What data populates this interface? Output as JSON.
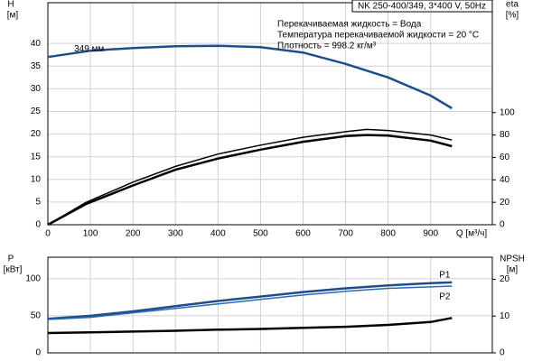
{
  "chart_data": [
    {
      "type": "line",
      "header": "NK 250-400/349, 3*400 V, 50Hz",
      "info": [
        "Перекачиваемая жидкость = Вода",
        "Температура перекачиваемой жидкости = 20 °C",
        "Плотность = 998.2 кг/м³"
      ],
      "ylabel": "H",
      "yunit": "[м]",
      "y2label": "eta",
      "y2unit": "[%]",
      "xlabel": "Q [м³/ч]",
      "xlim": [
        0,
        1045
      ],
      "xticks": [
        0,
        100,
        200,
        300,
        400,
        500,
        600,
        700,
        800,
        900
      ],
      "ylim": [
        0,
        49
      ],
      "yticks": [
        0,
        5,
        10,
        15,
        20,
        25,
        30,
        35,
        40
      ],
      "y2lim": [
        0,
        198
      ],
      "y2ticks": [
        0,
        20,
        40,
        60,
        80,
        100
      ],
      "grid": true,
      "series": [
        {
          "name": "349 мм",
          "color": "#1f4e8c",
          "x": [
            0,
            100,
            200,
            300,
            400,
            500,
            600,
            700,
            800,
            900,
            950
          ],
          "values": [
            37,
            38.4,
            39,
            39.4,
            39.5,
            39.2,
            38,
            35.5,
            32.5,
            28.5,
            25.7
          ]
        },
        {
          "color": "#000000",
          "axis": "y2",
          "x": [
            0,
            90,
            200,
            300,
            400,
            500,
            600,
            700,
            750,
            800,
            900,
            950
          ],
          "values": [
            0,
            20,
            38,
            52,
            63,
            71,
            78,
            83,
            85,
            84,
            80,
            75.6
          ]
        },
        {
          "color": "#000000",
          "axis": "y2",
          "x": [
            0,
            90,
            200,
            300,
            400,
            500,
            600,
            700,
            750,
            800,
            900,
            950
          ],
          "values": [
            0,
            18.5,
            35,
            49,
            59,
            67,
            74,
            79,
            80,
            79.5,
            75,
            70
          ]
        }
      ]
    },
    {
      "type": "line",
      "ylabel": "P",
      "yunit": "[кВт]",
      "y2label": "NPSH",
      "y2unit": "[м]",
      "xlim": [
        0,
        1045
      ],
      "xticks": [
        0,
        100,
        200,
        300,
        400,
        500,
        600,
        700,
        800,
        900
      ],
      "ylim": [
        0,
        129
      ],
      "yticks": [
        0,
        50,
        100
      ],
      "y2lim": [
        0,
        26
      ],
      "y2ticks": [
        0,
        10,
        20
      ],
      "grid": true,
      "series": [
        {
          "name": "P1",
          "color": "#1f4e8c",
          "x": [
            0,
            100,
            200,
            300,
            400,
            500,
            600,
            700,
            800,
            900,
            950
          ],
          "values": [
            46,
            50,
            56,
            63,
            70,
            76,
            82,
            87,
            91,
            94,
            95
          ]
        },
        {
          "name": "P2",
          "color": "#2a6ab0",
          "x": [
            0,
            100,
            200,
            300,
            400,
            500,
            600,
            700,
            800,
            900,
            950
          ],
          "values": [
            45,
            48,
            54,
            60,
            66,
            72,
            78,
            83,
            87,
            89,
            90
          ]
        },
        {
          "color": "#000000",
          "axis": "y2",
          "x": [
            0,
            100,
            200,
            300,
            400,
            500,
            600,
            700,
            800,
            900,
            950
          ],
          "values": [
            5.4,
            5.6,
            5.8,
            6.0,
            6.3,
            6.5,
            6.8,
            7.1,
            7.6,
            8.4,
            9.5
          ]
        }
      ]
    }
  ]
}
